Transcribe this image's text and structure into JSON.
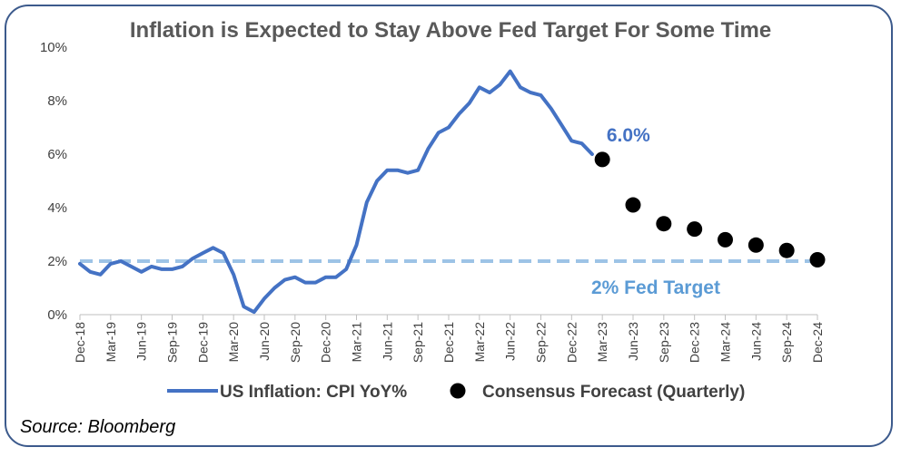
{
  "chart_data": {
    "type": "line",
    "title": "Inflation is Expected to Stay Above Fed Target For Some Time",
    "ylim": [
      0,
      10
    ],
    "y_ticks": [
      0,
      2,
      4,
      6,
      8,
      10
    ],
    "y_tick_labels": [
      "0%",
      "2%",
      "4%",
      "6%",
      "8%",
      "10%"
    ],
    "x_tick_labels": [
      "Dec-18",
      "Mar-19",
      "Jun-19",
      "Sep-19",
      "Dec-19",
      "Mar-20",
      "Jun-20",
      "Sep-20",
      "Dec-20",
      "Mar-21",
      "Jun-21",
      "Sep-21",
      "Dec-21",
      "Mar-22",
      "Jun-22",
      "Sep-22",
      "Dec-22",
      "Mar-23",
      "Jun-23",
      "Sep-23",
      "Dec-23",
      "Mar-24",
      "Jun-24",
      "Sep-24",
      "Dec-24"
    ],
    "grid": false,
    "legend_position": "bottom",
    "series": [
      {
        "name": "US Inflation: CPI YoY%",
        "style": "line",
        "color": "#4472c4",
        "x": [
          "Dec-18",
          "Jan-19",
          "Feb-19",
          "Mar-19",
          "Apr-19",
          "May-19",
          "Jun-19",
          "Jul-19",
          "Aug-19",
          "Sep-19",
          "Oct-19",
          "Nov-19",
          "Dec-19",
          "Jan-20",
          "Feb-20",
          "Mar-20",
          "Apr-20",
          "May-20",
          "Jun-20",
          "Jul-20",
          "Aug-20",
          "Sep-20",
          "Oct-20",
          "Nov-20",
          "Dec-20",
          "Jan-21",
          "Feb-21",
          "Mar-21",
          "Apr-21",
          "May-21",
          "Jun-21",
          "Jul-21",
          "Aug-21",
          "Sep-21",
          "Oct-21",
          "Nov-21",
          "Dec-21",
          "Jan-22",
          "Feb-22",
          "Mar-22",
          "Apr-22",
          "May-22",
          "Jun-22",
          "Jul-22",
          "Aug-22",
          "Sep-22",
          "Oct-22",
          "Nov-22",
          "Dec-22",
          "Jan-23",
          "Feb-23"
        ],
        "values": [
          1.9,
          1.6,
          1.5,
          1.9,
          2.0,
          1.8,
          1.6,
          1.8,
          1.7,
          1.7,
          1.8,
          2.1,
          2.3,
          2.5,
          2.3,
          1.5,
          0.3,
          0.1,
          0.6,
          1.0,
          1.3,
          1.4,
          1.2,
          1.2,
          1.4,
          1.4,
          1.7,
          2.6,
          4.2,
          5.0,
          5.4,
          5.4,
          5.3,
          5.4,
          6.2,
          6.8,
          7.0,
          7.5,
          7.9,
          8.5,
          8.3,
          8.6,
          9.1,
          8.5,
          8.3,
          8.2,
          7.7,
          7.1,
          6.5,
          6.4,
          6.0
        ]
      },
      {
        "name": "Consensus Forecast (Quarterly)",
        "style": "markers",
        "color": "#000000",
        "x": [
          "Mar-23",
          "Jun-23",
          "Sep-23",
          "Dec-23",
          "Mar-24",
          "Jun-24",
          "Sep-24",
          "Dec-24"
        ],
        "values": [
          5.8,
          4.1,
          3.4,
          3.2,
          2.8,
          2.6,
          2.4,
          2.05
        ]
      }
    ],
    "reference_line": {
      "value": 2,
      "label": "2% Fed Target",
      "color": "#9dc3e6"
    },
    "annotations": [
      {
        "text": "6.0%"
      }
    ],
    "source": "Source: Bloomberg"
  }
}
